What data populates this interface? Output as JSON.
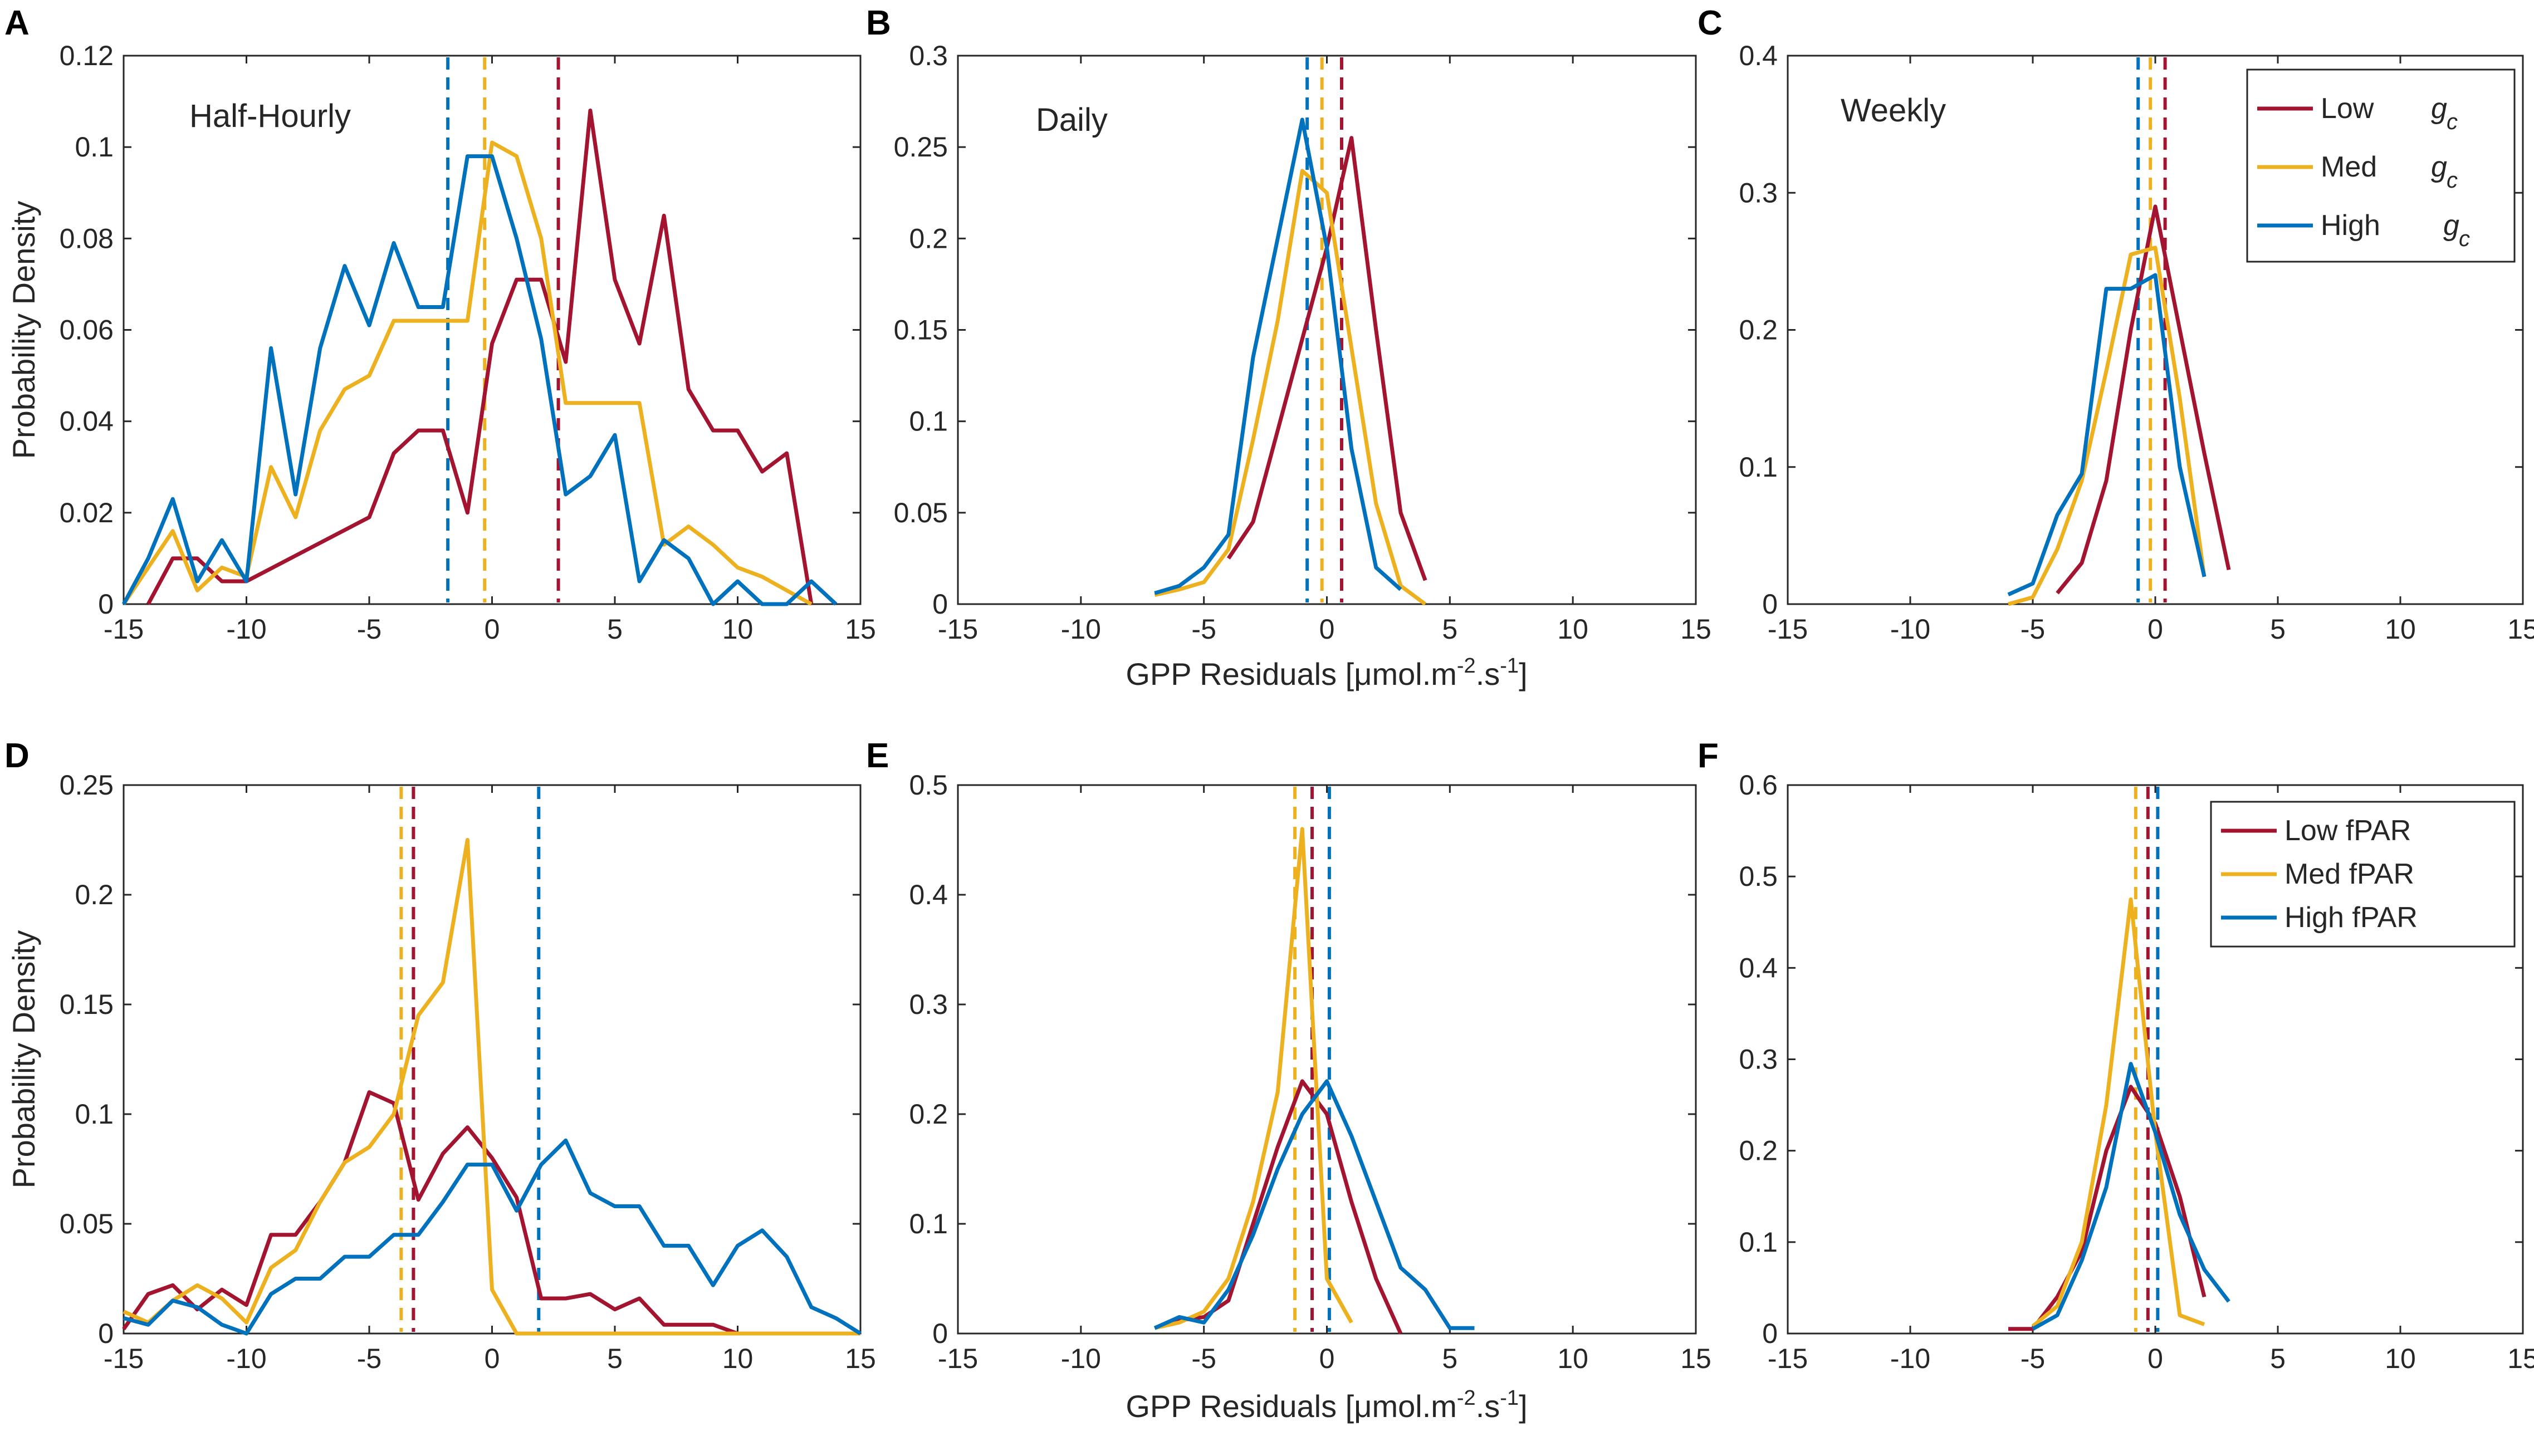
{
  "colors": {
    "low": "#A2142F",
    "med": "#EDB120",
    "high": "#0072BD"
  },
  "xlabel": "GPP Residuals [μmol.m",
  "xlabel_sup1": "-2",
  "xlabel_mid": ".s",
  "xlabel_sup2": "-1",
  "xlabel_end": "]",
  "ylabel": "Probability Density",
  "legends": {
    "gc": {
      "items": [
        "Low",
        "Med",
        "High"
      ],
      "symbol": "g",
      "symbol_sub": "c"
    },
    "fpar": {
      "items": [
        "Low fPAR",
        "Med fPAR",
        "High fPAR"
      ]
    }
  },
  "chart_data": [
    {
      "id": "A",
      "type": "line",
      "title": "Half-Hourly",
      "xlim": [
        -15,
        15
      ],
      "ylim": [
        0,
        0.12
      ],
      "xticks": [
        -15,
        -10,
        -5,
        0,
        5,
        10,
        15
      ],
      "yticks": [
        0,
        0.02,
        0.04,
        0.06,
        0.08,
        0.1,
        0.12
      ],
      "ytick_labels": [
        "0",
        "0.02",
        "0.04",
        "0.06",
        "0.08",
        "0.1",
        "0.12"
      ],
      "series": [
        {
          "name": "Low gc",
          "color_key": "low",
          "mean": 2.7,
          "x": [
            -14,
            -13,
            -12,
            -11,
            -10,
            -5,
            -4,
            -3,
            -2,
            -1,
            0,
            1,
            2,
            3,
            4,
            5,
            6,
            7,
            8,
            9,
            10,
            11,
            12,
            13
          ],
          "y": [
            0.0,
            0.01,
            0.01,
            0.005,
            0.005,
            0.019,
            0.033,
            0.038,
            0.038,
            0.02,
            0.057,
            0.071,
            0.071,
            0.053,
            0.108,
            0.071,
            0.057,
            0.085,
            0.047,
            0.038,
            0.038,
            0.029,
            0.033,
            0.0
          ]
        },
        {
          "name": "Med gc",
          "color_key": "med",
          "mean": -0.3,
          "x": [
            -15,
            -14,
            -13,
            -12,
            -11,
            -10,
            -9,
            -8,
            -7,
            -6,
            -5,
            -4,
            -3,
            -2,
            -1,
            0,
            1,
            2,
            3,
            4,
            5,
            6,
            7,
            8,
            9,
            10,
            11,
            12,
            13
          ],
          "y": [
            0.0,
            0.008,
            0.016,
            0.003,
            0.008,
            0.006,
            0.03,
            0.019,
            0.038,
            0.047,
            0.05,
            0.062,
            0.062,
            0.062,
            0.062,
            0.101,
            0.098,
            0.08,
            0.044,
            0.044,
            0.044,
            0.044,
            0.013,
            0.017,
            0.013,
            0.008,
            0.006,
            0.003,
            0.0
          ]
        },
        {
          "name": "High gc",
          "color_key": "high",
          "mean": -1.8,
          "x": [
            -15,
            -14,
            -13,
            -12,
            -11,
            -10,
            -9,
            -8,
            -7,
            -6,
            -5,
            -4,
            -3,
            -2,
            -1,
            0,
            1,
            2,
            3,
            4,
            5,
            6,
            7,
            8,
            9,
            10,
            11,
            12,
            13,
            14
          ],
          "y": [
            0.0,
            0.01,
            0.023,
            0.005,
            0.014,
            0.005,
            0.056,
            0.024,
            0.056,
            0.074,
            0.061,
            0.079,
            0.065,
            0.065,
            0.098,
            0.098,
            0.08,
            0.058,
            0.024,
            0.028,
            0.037,
            0.005,
            0.014,
            0.01,
            0.0,
            0.005,
            0.0,
            0.0,
            0.005,
            0.0
          ]
        }
      ]
    },
    {
      "id": "B",
      "type": "line",
      "title": "Daily",
      "xlim": [
        -15,
        15
      ],
      "ylim": [
        0,
        0.3
      ],
      "xticks": [
        -15,
        -10,
        -5,
        0,
        5,
        10,
        15
      ],
      "yticks": [
        0,
        0.05,
        0.1,
        0.15,
        0.2,
        0.25,
        0.3
      ],
      "ytick_labels": [
        "0",
        "0.05",
        "0.1",
        "0.15",
        "0.2",
        "0.25",
        "0.3"
      ],
      "series": [
        {
          "name": "Low gc",
          "color_key": "low",
          "mean": 0.6,
          "x": [
            -4,
            -3,
            -2,
            -1,
            0,
            1,
            2,
            3,
            4
          ],
          "y": [
            0.025,
            0.045,
            0.095,
            0.145,
            0.195,
            0.255,
            0.15,
            0.05,
            0.013
          ]
        },
        {
          "name": "Med gc",
          "color_key": "med",
          "mean": -0.2,
          "x": [
            -7,
            -6,
            -5,
            -4,
            -3,
            -2,
            -1,
            0,
            1,
            2,
            3,
            4
          ],
          "y": [
            0.005,
            0.008,
            0.012,
            0.03,
            0.09,
            0.155,
            0.237,
            0.225,
            0.14,
            0.055,
            0.01,
            0.0
          ]
        },
        {
          "name": "High gc",
          "color_key": "high",
          "mean": -0.8,
          "x": [
            -7,
            -6,
            -5,
            -4,
            -3,
            -2,
            -1,
            0,
            1,
            2,
            3
          ],
          "y": [
            0.006,
            0.01,
            0.02,
            0.038,
            0.135,
            0.2,
            0.265,
            0.195,
            0.085,
            0.02,
            0.008
          ]
        }
      ]
    },
    {
      "id": "C",
      "type": "line",
      "title": "Weekly",
      "xlim": [
        -15,
        15
      ],
      "ylim": [
        0,
        0.4
      ],
      "xticks": [
        -15,
        -10,
        -5,
        0,
        5,
        10,
        15
      ],
      "yticks": [
        0,
        0.1,
        0.2,
        0.3,
        0.4
      ],
      "ytick_labels": [
        "0",
        "0.1",
        "0.2",
        "0.3",
        "0.4"
      ],
      "series": [
        {
          "name": "Low gc",
          "color_key": "low",
          "mean": 0.4,
          "x": [
            -4,
            -3,
            -2,
            -1,
            0,
            1,
            2,
            3
          ],
          "y": [
            0.008,
            0.03,
            0.09,
            0.2,
            0.29,
            0.2,
            0.11,
            0.025
          ]
        },
        {
          "name": "Med gc",
          "color_key": "med",
          "mean": -0.2,
          "x": [
            -6,
            -5,
            -4,
            -3,
            -2,
            -1,
            0,
            1,
            2
          ],
          "y": [
            0.0,
            0.005,
            0.04,
            0.09,
            0.17,
            0.255,
            0.26,
            0.15,
            0.02
          ]
        },
        {
          "name": "High gc",
          "color_key": "high",
          "mean": -0.7,
          "x": [
            -6,
            -5,
            -4,
            -3,
            -2,
            -1,
            0,
            1,
            2
          ],
          "y": [
            0.007,
            0.015,
            0.065,
            0.095,
            0.23,
            0.23,
            0.24,
            0.1,
            0.02
          ]
        }
      ]
    },
    {
      "id": "D",
      "type": "line",
      "xlim": [
        -15,
        15
      ],
      "ylim": [
        0,
        0.25
      ],
      "xticks": [
        -15,
        -10,
        -5,
        0,
        5,
        10,
        15
      ],
      "yticks": [
        0,
        0.05,
        0.1,
        0.15,
        0.2,
        0.25
      ],
      "ytick_labels": [
        "0",
        "0.05",
        "0.1",
        "0.15",
        "0.2",
        "0.25"
      ],
      "series": [
        {
          "name": "Low fPAR",
          "color_key": "low",
          "mean": -3.2,
          "x": [
            -15,
            -14,
            -13,
            -12,
            -11,
            -10,
            -9,
            -8,
            -7,
            -6,
            -5,
            -4,
            -3,
            -2,
            -1,
            0,
            1,
            2,
            3,
            4,
            5,
            6,
            7,
            8,
            9,
            10
          ],
          "y": [
            0.002,
            0.018,
            0.022,
            0.011,
            0.02,
            0.013,
            0.045,
            0.045,
            0.06,
            0.078,
            0.11,
            0.105,
            0.061,
            0.082,
            0.094,
            0.08,
            0.062,
            0.016,
            0.016,
            0.018,
            0.011,
            0.016,
            0.004,
            0.004,
            0.004,
            0.0
          ]
        },
        {
          "name": "Med fPAR",
          "color_key": "med",
          "mean": -3.7,
          "x": [
            -15,
            -14,
            -13,
            -12,
            -11,
            -10,
            -9,
            -8,
            -7,
            -6,
            -5,
            -4,
            -3,
            -2,
            -1,
            0,
            1,
            2,
            3,
            4,
            5,
            6,
            7,
            8,
            9,
            10,
            11,
            12,
            13,
            14,
            15
          ],
          "y": [
            0.01,
            0.005,
            0.015,
            0.022,
            0.016,
            0.005,
            0.03,
            0.038,
            0.06,
            0.078,
            0.085,
            0.1,
            0.145,
            0.16,
            0.225,
            0.02,
            0.0,
            0.0,
            0.0,
            0.0,
            0.0,
            0.0,
            0.0,
            0.0,
            0.0,
            0.0,
            0.0,
            0.0,
            0.0,
            0.0,
            0.0
          ]
        },
        {
          "name": "High fPAR",
          "color_key": "high",
          "mean": 1.9,
          "x": [
            -15,
            -14,
            -13,
            -12,
            -11,
            -10,
            -9,
            -8,
            -7,
            -6,
            -5,
            -4,
            -3,
            -2,
            -1,
            0,
            1,
            2,
            3,
            4,
            5,
            6,
            7,
            8,
            9,
            10,
            11,
            12,
            13,
            14,
            15
          ],
          "y": [
            0.007,
            0.004,
            0.015,
            0.012,
            0.004,
            0.0,
            0.018,
            0.025,
            0.025,
            0.035,
            0.035,
            0.045,
            0.045,
            0.06,
            0.077,
            0.077,
            0.056,
            0.077,
            0.088,
            0.064,
            0.058,
            0.058,
            0.04,
            0.04,
            0.022,
            0.04,
            0.047,
            0.035,
            0.012,
            0.007,
            0.0
          ]
        }
      ]
    },
    {
      "id": "E",
      "type": "line",
      "xlim": [
        -15,
        15
      ],
      "ylim": [
        0,
        0.5
      ],
      "xticks": [
        -15,
        -10,
        -5,
        0,
        5,
        10,
        15
      ],
      "yticks": [
        0,
        0.1,
        0.2,
        0.3,
        0.4,
        0.5
      ],
      "ytick_labels": [
        "0",
        "0.1",
        "0.2",
        "0.3",
        "0.4",
        "0.5"
      ],
      "series": [
        {
          "name": "Low fPAR",
          "color_key": "low",
          "mean": -0.6,
          "x": [
            -7,
            -6,
            -5,
            -4,
            -3,
            -2,
            -1,
            0,
            1,
            2,
            3
          ],
          "y": [
            0.005,
            0.012,
            0.015,
            0.03,
            0.1,
            0.17,
            0.23,
            0.2,
            0.12,
            0.05,
            0.0
          ]
        },
        {
          "name": "Med fPAR",
          "color_key": "med",
          "mean": -1.3,
          "x": [
            -7,
            -6,
            -5,
            -4,
            -3,
            -2,
            -1,
            0,
            1
          ],
          "y": [
            0.005,
            0.01,
            0.02,
            0.05,
            0.12,
            0.22,
            0.46,
            0.05,
            0.01
          ]
        },
        {
          "name": "High fPAR",
          "color_key": "high",
          "mean": 0.1,
          "x": [
            -7,
            -6,
            -5,
            -4,
            -3,
            -2,
            -1,
            0,
            1,
            2,
            3,
            4,
            5,
            6
          ],
          "y": [
            0.005,
            0.015,
            0.01,
            0.04,
            0.09,
            0.15,
            0.2,
            0.23,
            0.18,
            0.12,
            0.06,
            0.04,
            0.005,
            0.005
          ]
        }
      ]
    },
    {
      "id": "F",
      "type": "line",
      "xlim": [
        -15,
        15
      ],
      "ylim": [
        0,
        0.6
      ],
      "xticks": [
        -15,
        -10,
        -5,
        0,
        5,
        10,
        15
      ],
      "yticks": [
        0,
        0.1,
        0.2,
        0.3,
        0.4,
        0.5,
        0.6
      ],
      "ytick_labels": [
        "0",
        "0.1",
        "0.2",
        "0.3",
        "0.4",
        "0.5",
        "0.6"
      ],
      "series": [
        {
          "name": "Low fPAR",
          "color_key": "low",
          "mean": -0.3,
          "x": [
            -6,
            -5,
            -4,
            -3,
            -2,
            -1,
            0,
            1,
            2
          ],
          "y": [
            0.005,
            0.005,
            0.04,
            0.09,
            0.2,
            0.27,
            0.23,
            0.15,
            0.04
          ]
        },
        {
          "name": "Med fPAR",
          "color_key": "med",
          "mean": -0.8,
          "x": [
            -5,
            -4,
            -3,
            -2,
            -1,
            0,
            1,
            2
          ],
          "y": [
            0.008,
            0.03,
            0.1,
            0.25,
            0.475,
            0.22,
            0.02,
            0.01
          ]
        },
        {
          "name": "High fPAR",
          "color_key": "high",
          "mean": 0.1,
          "x": [
            -5,
            -4,
            -3,
            -2,
            -1,
            0,
            1,
            2,
            3
          ],
          "y": [
            0.005,
            0.02,
            0.08,
            0.16,
            0.295,
            0.22,
            0.13,
            0.07,
            0.035
          ]
        }
      ]
    }
  ]
}
